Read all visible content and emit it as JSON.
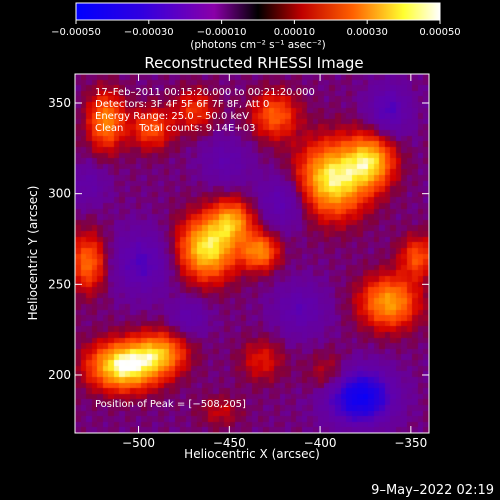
{
  "chart_data": {
    "type": "heatmap",
    "title": "Reconstructed RHESSI Image",
    "xlabel": "Heliocentric X (arcsec)",
    "ylabel": "Heliocentric Y (arcsec)",
    "xlim": [
      -535,
      -340
    ],
    "ylim": [
      168,
      366
    ],
    "x_ticks": [
      -500,
      -450,
      -400,
      -350
    ],
    "y_ticks": [
      200,
      250,
      300,
      350
    ],
    "x_tick_labels": [
      "−500",
      "−450",
      "−400",
      "−350"
    ],
    "y_tick_labels": [
      "200",
      "250",
      "300",
      "350"
    ],
    "colorbar": {
      "range": [
        -0.0005,
        0.0005
      ],
      "ticks": [
        -0.0005,
        -0.0003,
        -0.0001,
        0.0001,
        0.0003,
        0.0005
      ],
      "tick_labels": [
        "−0.00050",
        "−0.00030",
        "−0.00010",
        "0.00010",
        "0.00030",
        "0.00050"
      ],
      "unit_label": "(photons cm⁻² s⁻¹ asec⁻²)",
      "colors": [
        "#0000ff",
        "#7000c0",
        "#d00000",
        "#ff7000",
        "#ffff30",
        "#ffffff"
      ]
    },
    "annotations": [
      "17–Feb–2011 00:15:20.000 to 00:21:20.000",
      "Detectors: 3F 4F 5F 6F 7F 8F, Att 0",
      "Energy Range: 25.0 – 50.0 keV",
      "Clean     Total counts: 9.14E+03"
    ],
    "peak_label": "Position of Peak = [−508,205]",
    "peak": [
      -508,
      205
    ],
    "sources": [
      {
        "x": -508,
        "y": 205,
        "amp": 0.0005,
        "sx": 13,
        "sy": 9
      },
      {
        "x": -488,
        "y": 212,
        "amp": 0.0003,
        "sx": 10,
        "sy": 8
      },
      {
        "x": -462,
        "y": 270,
        "amp": 0.00044,
        "sx": 11,
        "sy": 12
      },
      {
        "x": -448,
        "y": 285,
        "amp": 0.0003,
        "sx": 8,
        "sy": 8
      },
      {
        "x": -433,
        "y": 268,
        "amp": 0.0003,
        "sx": 7,
        "sy": 7
      },
      {
        "x": -393,
        "y": 308,
        "amp": 0.00046,
        "sx": 13,
        "sy": 14
      },
      {
        "x": -372,
        "y": 318,
        "amp": 0.00036,
        "sx": 9,
        "sy": 10
      },
      {
        "x": -362,
        "y": 240,
        "amp": 0.00034,
        "sx": 11,
        "sy": 10
      },
      {
        "x": -346,
        "y": 265,
        "amp": 0.00022,
        "sx": 7,
        "sy": 8
      },
      {
        "x": -528,
        "y": 262,
        "amp": 0.00026,
        "sx": 7,
        "sy": 11
      },
      {
        "x": -518,
        "y": 340,
        "amp": 0.0003,
        "sx": 7,
        "sy": 11
      },
      {
        "x": -493,
        "y": 336,
        "amp": 0.00022,
        "sx": 8,
        "sy": 8
      },
      {
        "x": -469,
        "y": 346,
        "amp": 0.00018,
        "sx": 8,
        "sy": 8
      },
      {
        "x": -425,
        "y": 343,
        "amp": 0.00024,
        "sx": 9,
        "sy": 9
      },
      {
        "x": -432,
        "y": 208,
        "amp": 0.00014,
        "sx": 8,
        "sy": 8
      },
      {
        "x": -395,
        "y": 200,
        "amp": 0.00012,
        "sx": 8,
        "sy": 8
      },
      {
        "x": -455,
        "y": 180,
        "amp": 0.0001,
        "sx": 8,
        "sy": 6
      },
      {
        "x": -498,
        "y": 262,
        "amp": -0.00018,
        "sx": 11,
        "sy": 12
      },
      {
        "x": -420,
        "y": 296,
        "amp": -0.00016,
        "sx": 10,
        "sy": 10
      },
      {
        "x": -378,
        "y": 188,
        "amp": -0.00042,
        "sx": 12,
        "sy": 10
      },
      {
        "x": -452,
        "y": 318,
        "amp": -0.00012,
        "sx": 9,
        "sy": 9
      },
      {
        "x": -362,
        "y": 346,
        "amp": -0.00018,
        "sx": 8,
        "sy": 10
      },
      {
        "x": -411,
        "y": 236,
        "amp": -0.00014,
        "sx": 10,
        "sy": 10
      },
      {
        "x": -472,
        "y": 232,
        "amp": -0.00012,
        "sx": 7,
        "sy": 7
      },
      {
        "x": -528,
        "y": 305,
        "amp": -0.0001,
        "sx": 7,
        "sy": 8
      }
    ],
    "background": -1e-05
  },
  "footer": {
    "timestamp": "9–May–2022 02:19"
  }
}
